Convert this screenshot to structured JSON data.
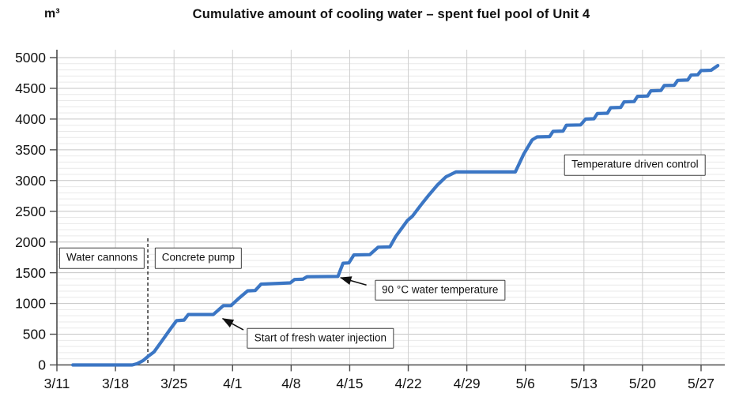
{
  "chart_data": {
    "type": "line",
    "title": "Cumulative amount of cooling water – spent fuel pool of Unit 4",
    "ylabel": "m³",
    "xlabel": "",
    "ylim": [
      0,
      5000
    ],
    "y_major_step": 500,
    "y_minor_step": 100,
    "grid": "on",
    "legend": "none",
    "y_ticks": [
      "0",
      "500",
      "1000",
      "1500",
      "2000",
      "2500",
      "3000",
      "3500",
      "4000",
      "4500",
      "5000"
    ],
    "x_ticks": [
      {
        "label": "3/11",
        "day": 0
      },
      {
        "label": "3/18",
        "day": 7
      },
      {
        "label": "3/25",
        "day": 14
      },
      {
        "label": "4/1",
        "day": 21
      },
      {
        "label": "4/8",
        "day": 28
      },
      {
        "label": "4/15",
        "day": 35
      },
      {
        "label": "4/22",
        "day": 42
      },
      {
        "label": "4/29",
        "day": 49
      },
      {
        "label": "5/6",
        "day": 56
      },
      {
        "label": "5/13",
        "day": 63
      },
      {
        "label": "5/20",
        "day": 70
      },
      {
        "label": "5/27",
        "day": 77
      }
    ],
    "x_range_days": [
      0,
      79.8
    ],
    "colors": {
      "series_line": "#3b76c4",
      "axis": "#4a4a4a",
      "grid_major": "#c6c6c6",
      "grid_minor": "#e9e9e9",
      "grid_vertical": "#cfcfcf",
      "event_line": "#222222",
      "text": "#111111",
      "annotation_border": "#3f3f3f"
    },
    "series": [
      {
        "points": [
          [
            1.9,
            0
          ],
          [
            9.0,
            0
          ],
          [
            9.6,
            20
          ],
          [
            10.3,
            70
          ],
          [
            10.9,
            140
          ],
          [
            11.6,
            210
          ],
          [
            12.6,
            400
          ],
          [
            13.6,
            590
          ],
          [
            14.3,
            720
          ],
          [
            15.2,
            730
          ],
          [
            15.7,
            820
          ],
          [
            18.7,
            820
          ],
          [
            19.9,
            965
          ],
          [
            20.8,
            965
          ],
          [
            21.8,
            1090
          ],
          [
            22.8,
            1205
          ],
          [
            23.7,
            1210
          ],
          [
            24.4,
            1315
          ],
          [
            27.9,
            1335
          ],
          [
            28.4,
            1390
          ],
          [
            29.4,
            1395
          ],
          [
            29.9,
            1435
          ],
          [
            33.6,
            1440
          ],
          [
            34.2,
            1655
          ],
          [
            34.9,
            1660
          ],
          [
            35.5,
            1790
          ],
          [
            37.4,
            1795
          ],
          [
            38.4,
            1915
          ],
          [
            39.8,
            1920
          ],
          [
            40.5,
            2090
          ],
          [
            41.9,
            2350
          ],
          [
            42.5,
            2420
          ],
          [
            43.5,
            2600
          ],
          [
            44.5,
            2770
          ],
          [
            45.5,
            2930
          ],
          [
            46.5,
            3060
          ],
          [
            47.7,
            3140
          ],
          [
            54.8,
            3140
          ],
          [
            55.8,
            3430
          ],
          [
            56.8,
            3660
          ],
          [
            57.4,
            3710
          ],
          [
            58.9,
            3715
          ],
          [
            59.3,
            3800
          ],
          [
            60.5,
            3805
          ],
          [
            60.9,
            3900
          ],
          [
            62.6,
            3905
          ],
          [
            63.2,
            4000
          ],
          [
            64.2,
            4005
          ],
          [
            64.6,
            4090
          ],
          [
            65.8,
            4095
          ],
          [
            66.2,
            4185
          ],
          [
            67.4,
            4190
          ],
          [
            67.8,
            4280
          ],
          [
            69.0,
            4285
          ],
          [
            69.4,
            4370
          ],
          [
            70.6,
            4375
          ],
          [
            71.0,
            4460
          ],
          [
            72.2,
            4465
          ],
          [
            72.6,
            4545
          ],
          [
            73.8,
            4550
          ],
          [
            74.2,
            4630
          ],
          [
            75.4,
            4635
          ],
          [
            75.8,
            4715
          ],
          [
            76.6,
            4720
          ],
          [
            77.0,
            4790
          ],
          [
            78.2,
            4795
          ],
          [
            79.0,
            4870
          ]
        ]
      }
    ],
    "event_divider": {
      "day": 10.87,
      "value_bottom": 0,
      "value_top": 2060,
      "style": "dashed"
    },
    "annotations": [
      {
        "text": "Water cannons",
        "anchor": {
          "day": 5.4,
          "value": 1735
        }
      },
      {
        "text": "Concrete pump",
        "anchor": {
          "day": 16.9,
          "value": 1735
        }
      },
      {
        "text": "Start of fresh water injection",
        "anchor": {
          "day": 31.5,
          "value": 435
        },
        "arrow": {
          "tail": {
            "day": 22.3,
            "value": 570
          },
          "tip": {
            "day": 19.8,
            "value": 755
          }
        }
      },
      {
        "text": "90 °C water temperature",
        "anchor": {
          "day": 45.8,
          "value": 1215
        },
        "arrow": {
          "tail": {
            "day": 37.0,
            "value": 1300
          },
          "tip": {
            "day": 33.9,
            "value": 1420
          }
        }
      },
      {
        "text": "Temperature driven control",
        "anchor": {
          "day": 69.1,
          "value": 3250
        }
      }
    ]
  }
}
